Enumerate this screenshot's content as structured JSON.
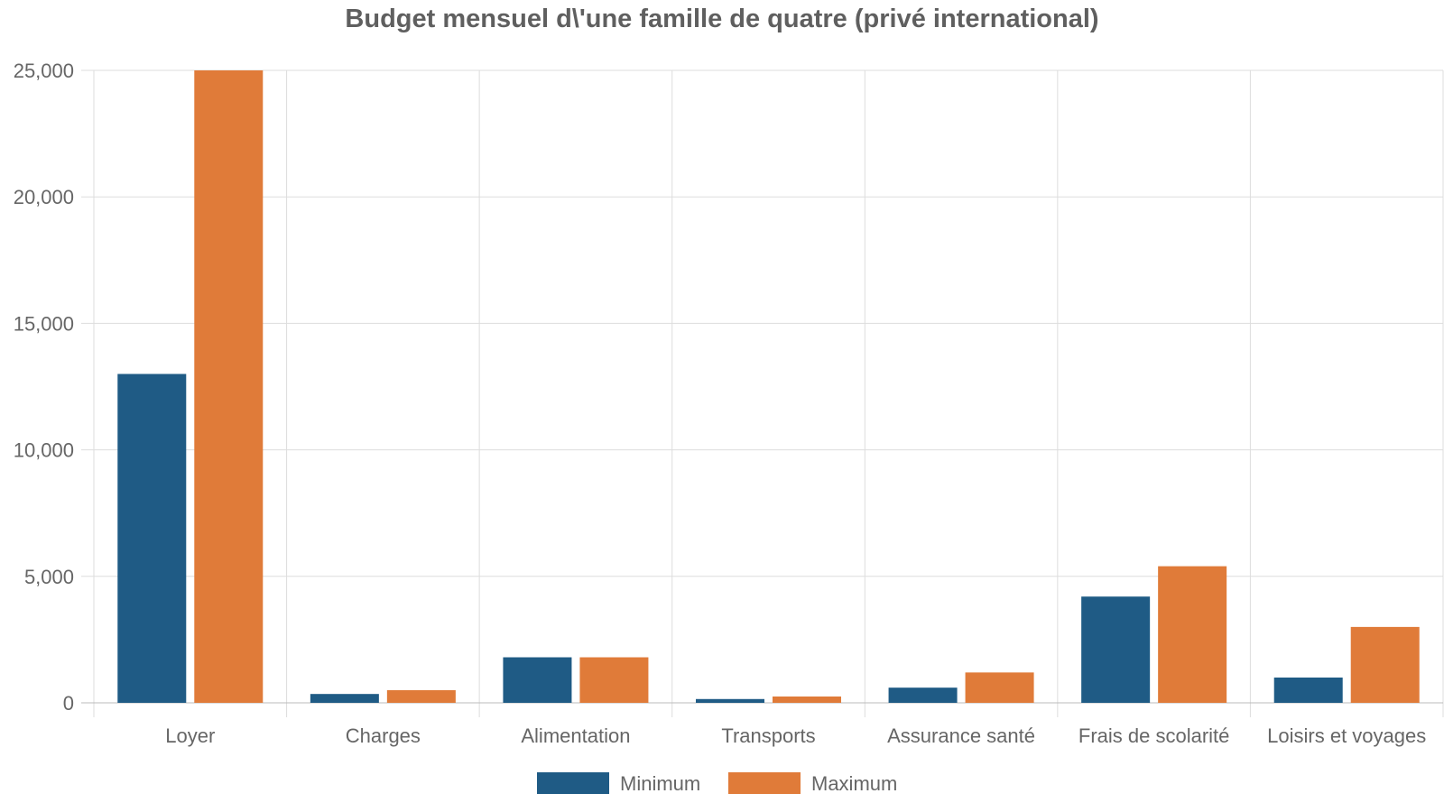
{
  "chart_data": {
    "type": "bar",
    "title": "Budget mensuel d\\'une famille de quatre (privé international)",
    "xlabel": "",
    "ylabel": "",
    "categories": [
      "Loyer",
      "Charges",
      "Alimentation",
      "Transports",
      "Assurance santé",
      "Frais de scolarité",
      "Loisirs et voyages"
    ],
    "series": [
      {
        "name": "Minimum",
        "color": "#1f5b85",
        "values": [
          13000,
          350,
          1800,
          150,
          600,
          4200,
          1000
        ]
      },
      {
        "name": "Maximum",
        "color": "#e07b39",
        "values": [
          25000,
          500,
          1800,
          250,
          1200,
          5400,
          3000
        ]
      }
    ],
    "ylim": [
      0,
      25000
    ],
    "yticks": [
      0,
      5000,
      10000,
      15000,
      20000,
      25000
    ],
    "ytick_labels": [
      "0",
      "5,000",
      "10,000",
      "15,000",
      "20,000",
      "25,000"
    ],
    "grid": true,
    "legend_position": "bottom-center"
  }
}
